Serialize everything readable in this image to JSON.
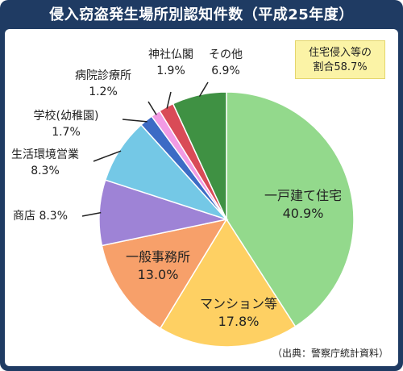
{
  "title": "侵入窃盗発生場所別認知件数（平成25年度）",
  "note": {
    "line1": "住宅侵入等の",
    "line2": "割合58.7%"
  },
  "source": "（出典：警察庁統計資料）",
  "chart_data": {
    "type": "pie",
    "title": "侵入窃盗発生場所別認知件数（平成25年度）",
    "slices": [
      {
        "name": "一戸建て住宅",
        "value": 40.9,
        "label": "40.9%",
        "color": "#93d98c"
      },
      {
        "name": "マンション等",
        "value": 17.8,
        "label": "17.8%",
        "color": "#fed063"
      },
      {
        "name": "一般事務所",
        "value": 13.0,
        "label": "13.0%",
        "color": "#f7a06a"
      },
      {
        "name": "商店",
        "value": 8.3,
        "label": "8.3%",
        "color": "#9e83d6"
      },
      {
        "name": "生活環境営業",
        "value": 8.3,
        "label": "8.3%",
        "color": "#74c8e6"
      },
      {
        "name": "学校(幼稚園)",
        "value": 1.7,
        "label": "1.7%",
        "color": "#3c6bc5"
      },
      {
        "name": "病院診療所",
        "value": 1.2,
        "label": "1.2%",
        "color": "#f29be4"
      },
      {
        "name": "神社仏閣",
        "value": 1.9,
        "label": "1.9%",
        "color": "#d94b57"
      },
      {
        "name": "その他",
        "value": 6.9,
        "label": "6.9%",
        "color": "#3f9143"
      }
    ]
  }
}
